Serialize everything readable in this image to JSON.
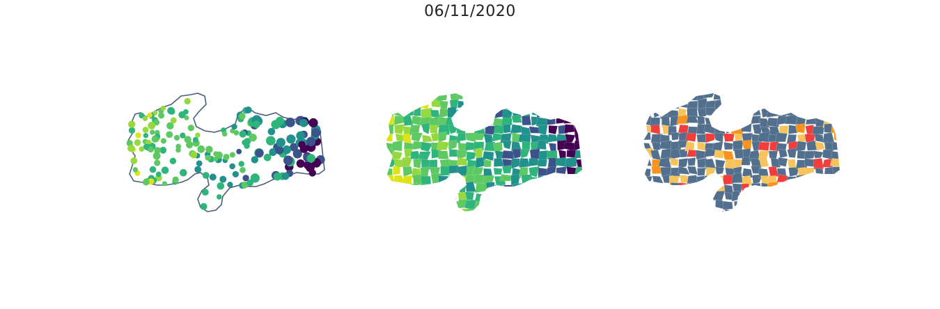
{
  "title": "06/11/2020",
  "colors": {
    "outline": "#4a5f7d",
    "viridis": [
      "#440154",
      "#3b528b",
      "#21918c",
      "#2fb47c",
      "#5ec962",
      "#95d840",
      "#dde318"
    ],
    "risk": {
      "base": "#52708d",
      "high": "#f23d3d",
      "mid": "#f7c35b",
      "alert": "#f7941d"
    }
  },
  "maps": [
    {
      "name": "point-map",
      "type": "bubble"
    },
    {
      "name": "choropleth-continuous",
      "type": "choropleth"
    },
    {
      "name": "choropleth-categorical",
      "type": "choropleth"
    }
  ]
}
